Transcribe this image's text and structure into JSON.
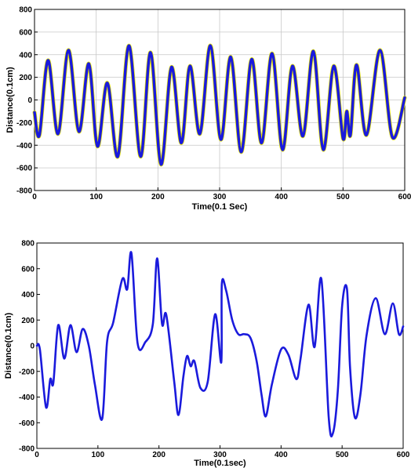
{
  "chart_data": [
    {
      "type": "line",
      "title": "",
      "xlabel": "Time(0.1 Sec)",
      "ylabel": "Distance(0.1cm)",
      "xlim": [
        0,
        600
      ],
      "ylim": [
        -800,
        800
      ],
      "xticks": [
        0,
        100,
        200,
        300,
        400,
        500,
        600
      ],
      "yticks": [
        -800,
        -600,
        -400,
        -200,
        0,
        200,
        400,
        600,
        800
      ],
      "grid": true,
      "line_color": "#1a1adc",
      "highlight_color": "#e8e800",
      "series": [
        {
          "x": [
            0,
            8,
            22,
            38,
            55,
            72,
            88,
            102,
            118,
            135,
            153,
            172,
            188,
            205,
            222,
            238,
            252,
            268,
            285,
            302,
            318,
            335,
            352,
            368,
            385,
            402,
            418,
            435,
            452,
            468,
            485,
            500,
            506,
            512,
            522,
            538,
            560,
            580,
            600
          ],
          "y": [
            -110,
            -310,
            350,
            -300,
            440,
            -280,
            320,
            -410,
            150,
            -500,
            480,
            -500,
            420,
            -570,
            290,
            -380,
            300,
            -300,
            480,
            -350,
            380,
            -460,
            360,
            -380,
            410,
            -440,
            300,
            -320,
            430,
            -440,
            300,
            -340,
            -100,
            -310,
            310,
            -310,
            440,
            -330,
            20
          ]
        }
      ]
    },
    {
      "type": "line",
      "title": "",
      "xlabel": "Time(0.1sec)",
      "ylabel": "Distance(0.1cm)",
      "xlim": [
        0,
        600
      ],
      "ylim": [
        -800,
        800
      ],
      "xticks": [
        0,
        100,
        200,
        300,
        400,
        500,
        600
      ],
      "yticks": [
        -800,
        -600,
        -400,
        -200,
        0,
        200,
        400,
        600,
        800
      ],
      "grid": false,
      "line_color": "#1a1adc",
      "series": [
        {
          "x": [
            0,
            5,
            15,
            22,
            27,
            35,
            45,
            55,
            65,
            75,
            85,
            95,
            107,
            115,
            125,
            140,
            148,
            155,
            165,
            178,
            190,
            197,
            205,
            212,
            225,
            232,
            240,
            246,
            252,
            258,
            268,
            280,
            292,
            302,
            303,
            310,
            320,
            330,
            340,
            350,
            360,
            368,
            375,
            385,
            400,
            412,
            425,
            432,
            445,
            455,
            466,
            478,
            485,
            493,
            500,
            508,
            513,
            521,
            530,
            540,
            555,
            570,
            583,
            593,
            600
          ],
          "y": [
            0,
            -30,
            -480,
            -260,
            -290,
            160,
            -100,
            160,
            -50,
            130,
            0,
            -300,
            -570,
            30,
            180,
            520,
            440,
            720,
            20,
            30,
            170,
            680,
            170,
            240,
            -280,
            -540,
            -240,
            -80,
            -160,
            -120,
            -330,
            -280,
            245,
            -130,
            480,
            430,
            200,
            90,
            90,
            60,
            -120,
            -380,
            -550,
            -300,
            -30,
            -70,
            -260,
            -100,
            320,
            -10,
            520,
            -550,
            -680,
            -350,
            310,
            440,
            -170,
            -560,
            -380,
            80,
            370,
            90,
            330,
            90,
            150
          ]
        }
      ]
    }
  ]
}
